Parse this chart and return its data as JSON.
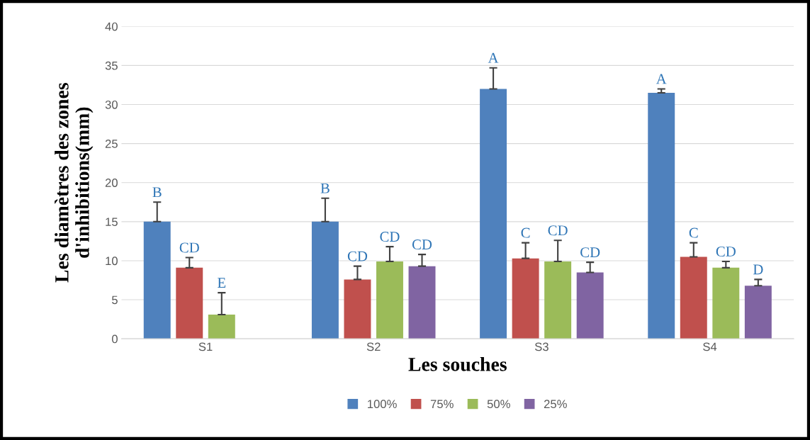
{
  "chart_data": {
    "type": "bar",
    "xlabel": "Les souches",
    "ylabel": "Les diamètres des zones\nd'inhibitions(mm)",
    "categories": [
      "S1",
      "S2",
      "S3",
      "S4"
    ],
    "series": [
      {
        "name": "100%",
        "color": "#4f81bd",
        "values": [
          15.0,
          15.0,
          32.0,
          31.5
        ],
        "errors": [
          [
            15.0,
            17.5
          ],
          [
            15.0,
            18.0
          ],
          [
            32.0,
            34.7
          ],
          [
            31.5,
            32.0
          ]
        ],
        "value_labels": [
          "B",
          "B",
          "A",
          "A"
        ]
      },
      {
        "name": "75%",
        "color": "#c0504d",
        "values": [
          9.1,
          7.6,
          10.3,
          10.5
        ],
        "errors": [
          [
            9.1,
            10.4
          ],
          [
            7.6,
            9.3
          ],
          [
            10.3,
            12.3
          ],
          [
            10.5,
            12.3
          ]
        ],
        "value_labels": [
          "CD",
          "CD",
          "C",
          "C"
        ]
      },
      {
        "name": "50%",
        "color": "#9bbb59",
        "values": [
          3.1,
          9.9,
          9.9,
          9.1
        ],
        "errors": [
          [
            3.1,
            5.9
          ],
          [
            9.9,
            11.8
          ],
          [
            9.9,
            12.6
          ],
          [
            9.1,
            9.9
          ]
        ],
        "value_labels": [
          "E",
          "CD",
          "CD",
          "CD"
        ]
      },
      {
        "name": "25%",
        "color": "#8064a2",
        "values": [
          0,
          9.3,
          8.5,
          6.8
        ],
        "errors": [
          null,
          [
            9.3,
            10.8
          ],
          [
            8.5,
            9.8
          ],
          [
            6.8,
            7.6
          ]
        ],
        "value_labels": [
          null,
          "CD",
          "CD",
          "D"
        ]
      }
    ],
    "ylim": [
      0,
      40
    ],
    "yticks": [
      0,
      5,
      10,
      15,
      20,
      25,
      30,
      35,
      40
    ],
    "grid": "y",
    "legend": "bottom"
  }
}
